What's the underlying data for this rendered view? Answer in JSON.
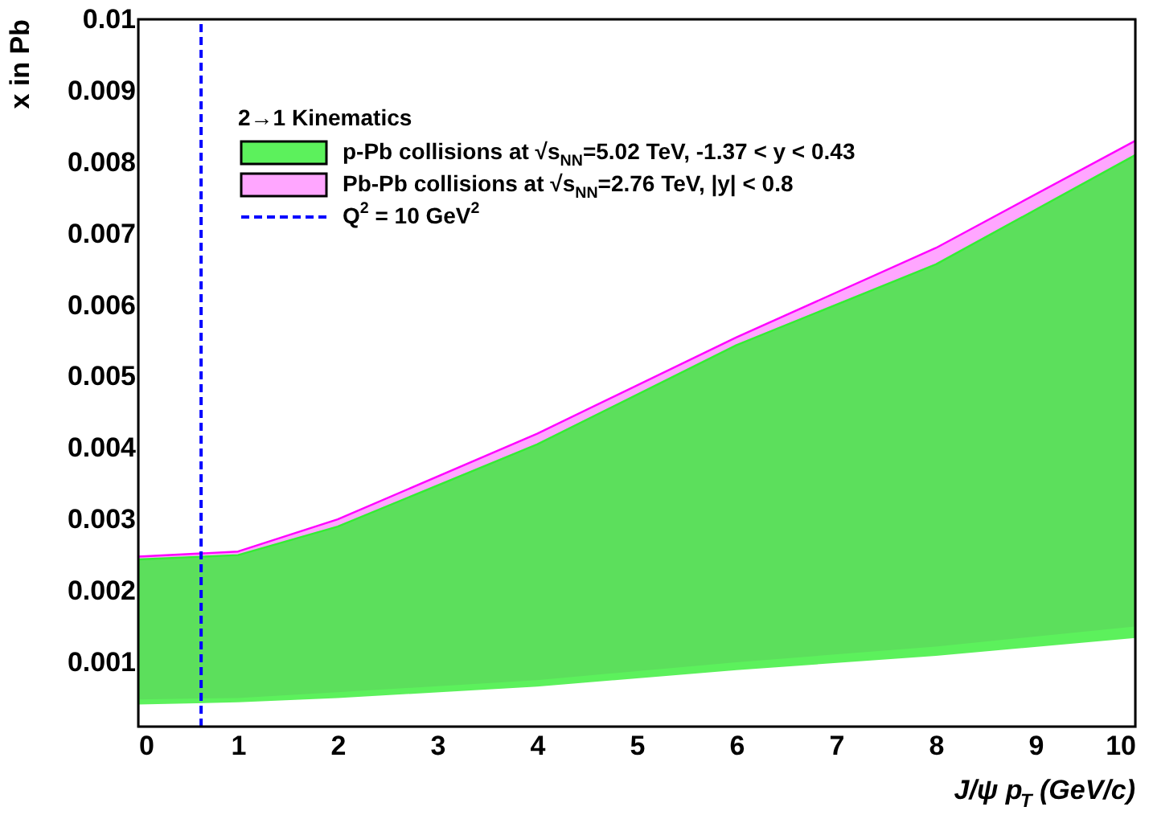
{
  "chart_data": {
    "type": "line",
    "xlabel": "J/ψ p$_{T}$ (GeV/c)",
    "ylabel": "x in Pb",
    "legend_title": "2→1 Kinematics",
    "xlim": [
      0,
      10
    ],
    "xticks": [
      0,
      1,
      2,
      3,
      4,
      5,
      6,
      7,
      8,
      9,
      10
    ],
    "ylim": [
      0.0001,
      0.01
    ],
    "yticks": [
      0.001,
      0.002,
      0.003,
      0.004,
      0.005,
      0.006,
      0.007,
      0.008,
      0.009,
      0.01
    ],
    "grid": false,
    "legend": "top left",
    "series": [
      {
        "name": "p-Pb collisions at √s$_{NN}$=5.02 TeV, -1.37 < y < 0.43",
        "color": "#33ee33",
        "x": [
          0,
          1,
          2,
          4,
          6,
          8,
          10
        ],
        "lower": [
          0.00041,
          0.00044,
          0.0005,
          0.00066,
          0.00089,
          0.00109,
          0.00134
        ],
        "upper": [
          0.00244,
          0.0025,
          0.0029,
          0.00405,
          0.00544,
          0.00657,
          0.0081
        ],
        "values": [
          0.00244,
          0.0025,
          0.0029,
          0.00405,
          0.00544,
          0.00657,
          0.0081
        ]
      },
      {
        "name": "Pb-Pb collisions at √s$_{NN}$=2.76 TeV, |y| < 0.8",
        "color": "#ff00ff",
        "x": [
          0,
          1,
          2,
          4,
          6,
          8,
          10
        ],
        "lower": [
          0.00048,
          0.0005,
          0.00058,
          0.00075,
          0.001,
          0.00122,
          0.0015
        ],
        "upper": [
          0.00248,
          0.00255,
          0.003,
          0.0042,
          0.00555,
          0.0068,
          0.0083
        ],
        "values": [
          0.00248,
          0.00255,
          0.003,
          0.0042,
          0.00555,
          0.0068,
          0.0083
        ]
      },
      {
        "name": "Q$^{2}$ = 10 GeV$^{2}$",
        "color": "#0000ff",
        "line_style": "dashed",
        "x": [
          0.63,
          0.63
        ],
        "values": [
          0.0001,
          0.01
        ]
      }
    ]
  }
}
